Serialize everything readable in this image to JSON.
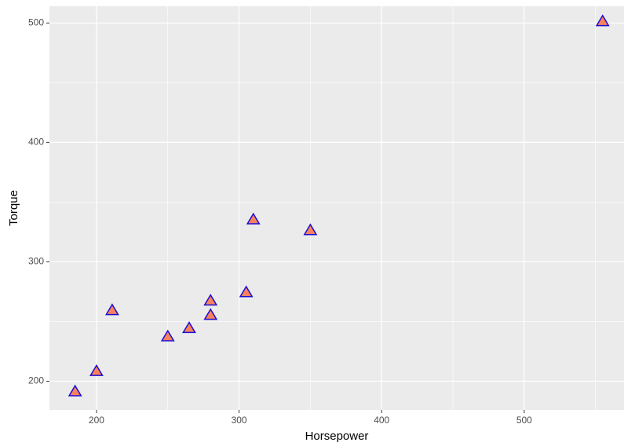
{
  "chart_data": {
    "type": "scatter",
    "x_label": "Horsepower",
    "y_label": "Torque",
    "x": [
      185,
      200,
      211,
      250,
      265,
      280,
      280,
      305,
      310,
      350,
      555
    ],
    "values": [
      191,
      208,
      259,
      237,
      244,
      267,
      255,
      274,
      335,
      326,
      501
    ],
    "color": "#f9825c",
    "edge_color": "#1a0dd6",
    "marker": "triangle",
    "xlim": [
      167,
      570
    ],
    "ylim": [
      176,
      514
    ],
    "xticks": [
      200,
      300,
      400,
      500
    ],
    "yticks": [
      200,
      300,
      400,
      500
    ],
    "grid": true
  }
}
